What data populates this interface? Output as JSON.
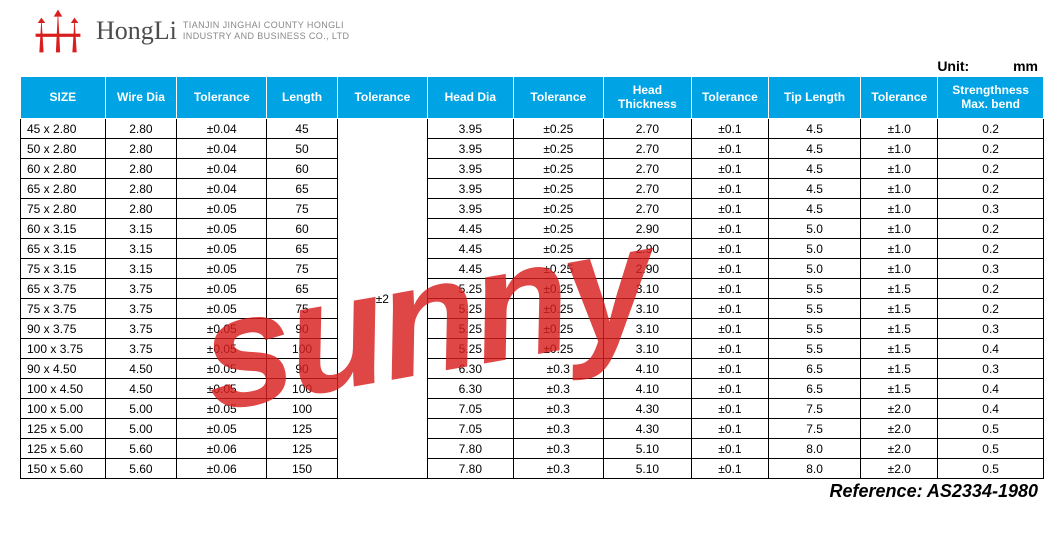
{
  "brand": {
    "name": "HongLi",
    "sub1": "TIANJIN JINGHAI COUNTY HONGLI",
    "sub2": "INDUSTRY AND BUSINESS CO., LTD",
    "logo_color": "#d91e1e"
  },
  "unit": {
    "label": "Unit:",
    "value": "mm"
  },
  "watermark": {
    "text": "sunny",
    "color": "#d91e1e",
    "opacity": 0.82
  },
  "reference": {
    "label": "Reference: AS2334-1980"
  },
  "table": {
    "header_bg": "#00a4e4",
    "header_fg": "#ffffff",
    "border_color": "#000000",
    "columns": [
      "SIZE",
      "Wire Dia",
      "Tolerance",
      "Length",
      "Tolerance",
      "Head Dia",
      "Tolerance",
      "Head Thickness",
      "Tolerance",
      "Tip Length",
      "Tolerance",
      "Strengthness Max. bend"
    ],
    "length_tolerance_merged": "±2",
    "rows": [
      {
        "size": "45 x 2.80",
        "wire": "2.80",
        "tol1": "±0.04",
        "len": "45",
        "hd": "3.95",
        "tol3": "±0.25",
        "ht": "2.70",
        "tol4": "±0.1",
        "tip": "4.5",
        "tol5": "±1.0",
        "str": "0.2"
      },
      {
        "size": "50 x 2.80",
        "wire": "2.80",
        "tol1": "±0.04",
        "len": "50",
        "hd": "3.95",
        "tol3": "±0.25",
        "ht": "2.70",
        "tol4": "±0.1",
        "tip": "4.5",
        "tol5": "±1.0",
        "str": "0.2"
      },
      {
        "size": "60 x 2.80",
        "wire": "2.80",
        "tol1": "±0.04",
        "len": "60",
        "hd": "3.95",
        "tol3": "±0.25",
        "ht": "2.70",
        "tol4": "±0.1",
        "tip": "4.5",
        "tol5": "±1.0",
        "str": "0.2"
      },
      {
        "size": "65 x 2.80",
        "wire": "2.80",
        "tol1": "±0.04",
        "len": "65",
        "hd": "3.95",
        "tol3": "±0.25",
        "ht": "2.70",
        "tol4": "±0.1",
        "tip": "4.5",
        "tol5": "±1.0",
        "str": "0.2"
      },
      {
        "size": "75 x 2.80",
        "wire": "2.80",
        "tol1": "±0.05",
        "len": "75",
        "hd": "3.95",
        "tol3": "±0.25",
        "ht": "2.70",
        "tol4": "±0.1",
        "tip": "4.5",
        "tol5": "±1.0",
        "str": "0.3"
      },
      {
        "size": "60 x 3.15",
        "wire": "3.15",
        "tol1": "±0.05",
        "len": "60",
        "hd": "4.45",
        "tol3": "±0.25",
        "ht": "2.90",
        "tol4": "±0.1",
        "tip": "5.0",
        "tol5": "±1.0",
        "str": "0.2"
      },
      {
        "size": "65 x 3.15",
        "wire": "3.15",
        "tol1": "±0.05",
        "len": "65",
        "hd": "4.45",
        "tol3": "±0.25",
        "ht": "2.90",
        "tol4": "±0.1",
        "tip": "5.0",
        "tol5": "±1.0",
        "str": "0.2"
      },
      {
        "size": "75 x 3.15",
        "wire": "3.15",
        "tol1": "±0.05",
        "len": "75",
        "hd": "4.45",
        "tol3": "±0.25",
        "ht": "2.90",
        "tol4": "±0.1",
        "tip": "5.0",
        "tol5": "±1.0",
        "str": "0.3"
      },
      {
        "size": "65 x 3.75",
        "wire": "3.75",
        "tol1": "±0.05",
        "len": "65",
        "hd": "5.25",
        "tol3": "±0.25",
        "ht": "3.10",
        "tol4": "±0.1",
        "tip": "5.5",
        "tol5": "±1.5",
        "str": "0.2"
      },
      {
        "size": "75 x 3.75",
        "wire": "3.75",
        "tol1": "±0.05",
        "len": "75",
        "hd": "5.25",
        "tol3": "±0.25",
        "ht": "3.10",
        "tol4": "±0.1",
        "tip": "5.5",
        "tol5": "±1.5",
        "str": "0.2"
      },
      {
        "size": "90 x 3.75",
        "wire": "3.75",
        "tol1": "±0.05",
        "len": "90",
        "hd": "5.25",
        "tol3": "±0.25",
        "ht": "3.10",
        "tol4": "±0.1",
        "tip": "5.5",
        "tol5": "±1.5",
        "str": "0.3"
      },
      {
        "size": "100 x 3.75",
        "wire": "3.75",
        "tol1": "±0.05",
        "len": "100",
        "hd": "5.25",
        "tol3": "±0.25",
        "ht": "3.10",
        "tol4": "±0.1",
        "tip": "5.5",
        "tol5": "±1.5",
        "str": "0.4"
      },
      {
        "size": "90 x 4.50",
        "wire": "4.50",
        "tol1": "±0.05",
        "len": "90",
        "hd": "6.30",
        "tol3": "±0.3",
        "ht": "4.10",
        "tol4": "±0.1",
        "tip": "6.5",
        "tol5": "±1.5",
        "str": "0.3"
      },
      {
        "size": "100 x 4.50",
        "wire": "4.50",
        "tol1": "±0.05",
        "len": "100",
        "hd": "6.30",
        "tol3": "±0.3",
        "ht": "4.10",
        "tol4": "±0.1",
        "tip": "6.5",
        "tol5": "±1.5",
        "str": "0.4"
      },
      {
        "size": "100 x 5.00",
        "wire": "5.00",
        "tol1": "±0.05",
        "len": "100",
        "hd": "7.05",
        "tol3": "±0.3",
        "ht": "4.30",
        "tol4": "±0.1",
        "tip": "7.5",
        "tol5": "±2.0",
        "str": "0.4"
      },
      {
        "size": "125 x 5.00",
        "wire": "5.00",
        "tol1": "±0.05",
        "len": "125",
        "hd": "7.05",
        "tol3": "±0.3",
        "ht": "4.30",
        "tol4": "±0.1",
        "tip": "7.5",
        "tol5": "±2.0",
        "str": "0.5"
      },
      {
        "size": "125 x 5.60",
        "wire": "5.60",
        "tol1": "±0.06",
        "len": "125",
        "hd": "7.80",
        "tol3": "±0.3",
        "ht": "5.10",
        "tol4": "±0.1",
        "tip": "8.0",
        "tol5": "±2.0",
        "str": "0.5"
      },
      {
        "size": "150 x 5.60",
        "wire": "5.60",
        "tol1": "±0.06",
        "len": "150",
        "hd": "7.80",
        "tol3": "±0.3",
        "ht": "5.10",
        "tol4": "±0.1",
        "tip": "8.0",
        "tol5": "±2.0",
        "str": "0.5"
      }
    ]
  }
}
